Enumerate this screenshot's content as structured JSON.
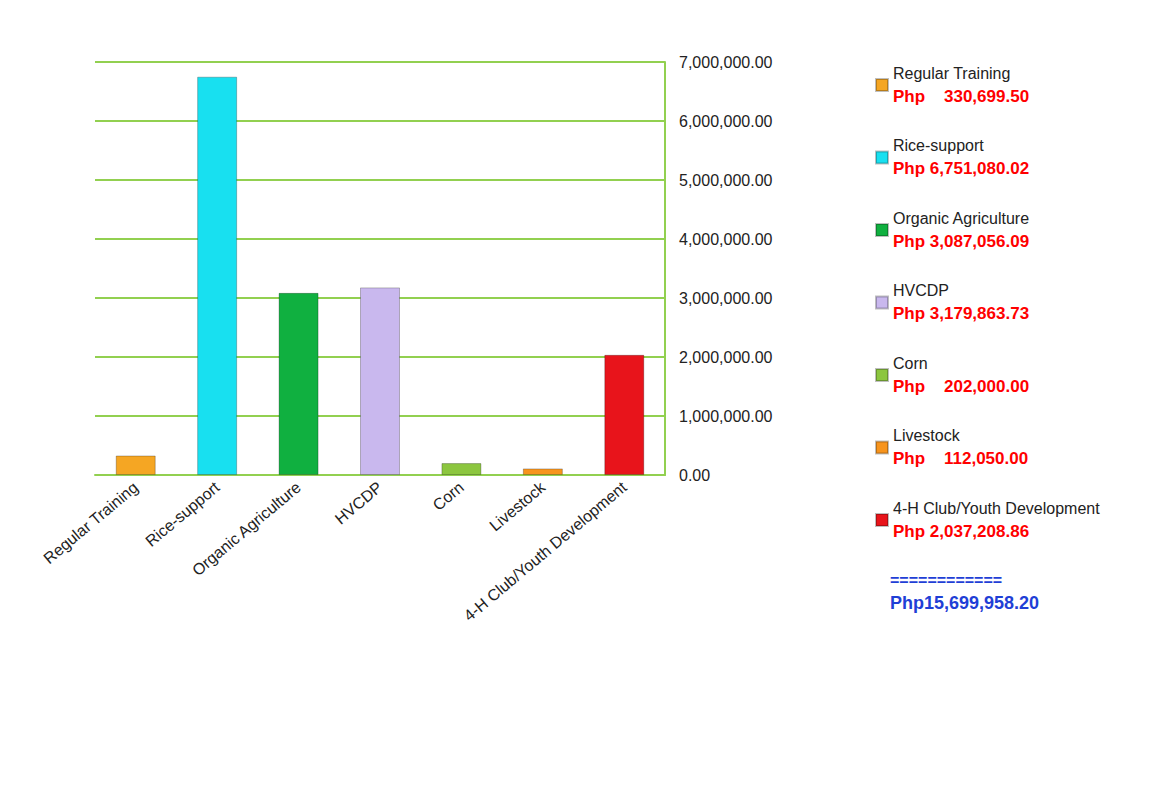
{
  "chart_data": {
    "type": "bar",
    "categories": [
      "Regular Training",
      "Rice-support",
      "Organic Agriculture",
      "HVCDP",
      "Corn",
      "Livestock",
      "4-H Club/Youth Development"
    ],
    "values": [
      330699.5,
      6751080.02,
      3087056.09,
      3179863.73,
      202000.0,
      112050.0,
      2037208.86
    ],
    "value_labels": [
      "Php    330,699.50",
      "Php 6,751,080.02",
      "Php 3,087,056.09",
      "Php 3,179,863.73",
      "Php    202,000.00",
      "Php    112,050.00",
      "Php 2,037,208.86"
    ],
    "colors": [
      "#f5a623",
      "#18e0f0",
      "#10b040",
      "#c9b8ee",
      "#8cc63f",
      "#f7941d",
      "#e8141b"
    ],
    "ylim": [
      0,
      7000000
    ],
    "yticks": [
      {
        "value": 0,
        "label": "0.00"
      },
      {
        "value": 1000000,
        "label": "1,000,000.00"
      },
      {
        "value": 2000000,
        "label": "2,000,000.00"
      },
      {
        "value": 3000000,
        "label": "3,000,000.00"
      },
      {
        "value": 4000000,
        "label": "4,000,000.00"
      },
      {
        "value": 5000000,
        "label": "5,000,000.00"
      },
      {
        "value": 6000000,
        "label": "6,000,000.00"
      },
      {
        "value": 7000000,
        "label": "7,000,000.00"
      }
    ],
    "grid": true,
    "legend": "right",
    "separator": "============",
    "total_label": "Php15,699,958.20"
  }
}
